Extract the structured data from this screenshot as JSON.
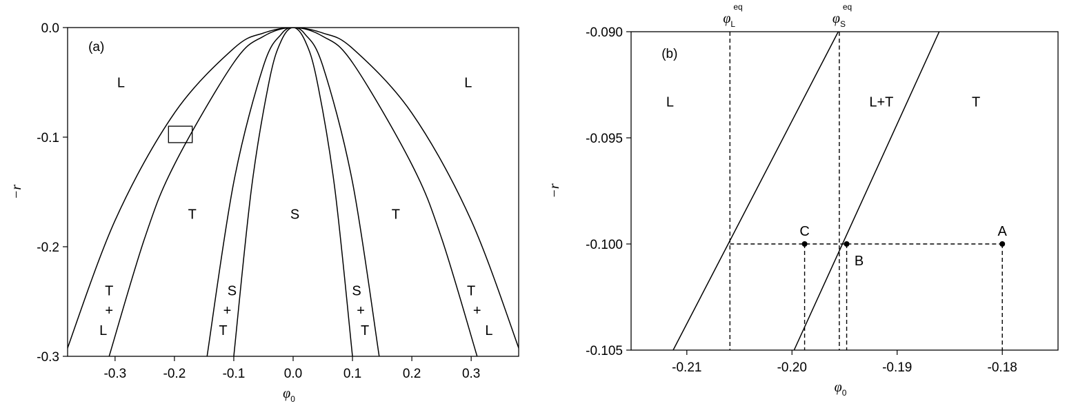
{
  "chart_data": [
    {
      "type": "line",
      "panel_label": "(a)",
      "xlabel": "φ",
      "xlabel_sub": "0",
      "ylabel": "−r",
      "xlim": [
        -0.38,
        0.38
      ],
      "ylim": [
        -0.3,
        0.0
      ],
      "xticks": [
        -0.3,
        -0.2,
        -0.1,
        0.0,
        0.1,
        0.2,
        0.3
      ],
      "xtick_labels": [
        "-0.3",
        "-0.2",
        "-0.1",
        "0.0",
        "0.1",
        "0.2",
        "0.3"
      ],
      "yticks": [
        0.0,
        -0.1,
        -0.2,
        -0.3
      ],
      "ytick_labels": [
        "0.0",
        "-0.1",
        "-0.2",
        "-0.3"
      ],
      "series": [
        {
          "x": [
            -0.385,
            -0.3,
            -0.2,
            -0.1,
            -0.05,
            0.0,
            0.05,
            0.1,
            0.2,
            0.3,
            0.385
          ],
          "y": [
            -0.3,
            -0.176,
            -0.078,
            -0.019,
            -0.005,
            0.0,
            -0.005,
            -0.019,
            -0.078,
            -0.176,
            -0.3
          ]
        },
        {
          "x": [
            -0.31,
            -0.25,
            -0.2,
            -0.1,
            -0.05,
            0.0,
            0.05,
            0.1,
            0.2,
            0.25,
            0.31
          ],
          "y": [
            -0.3,
            -0.192,
            -0.125,
            -0.032,
            -0.008,
            0.0,
            -0.008,
            -0.032,
            -0.125,
            -0.192,
            -0.3
          ]
        },
        {
          "x": [
            -0.145,
            -0.1,
            -0.05,
            -0.02,
            0.0,
            0.02,
            0.05,
            0.1,
            0.145
          ],
          "y": [
            -0.3,
            -0.141,
            -0.035,
            -0.006,
            0.0,
            -0.006,
            -0.035,
            -0.141,
            -0.3
          ]
        },
        {
          "x": [
            -0.1,
            -0.07,
            -0.04,
            -0.02,
            0.0,
            0.02,
            0.04,
            0.07,
            0.1
          ],
          "y": [
            -0.3,
            -0.146,
            -0.048,
            -0.012,
            0.0,
            -0.012,
            -0.048,
            -0.146,
            -0.3
          ]
        }
      ],
      "inset_box": {
        "x": [
          -0.21,
          -0.17
        ],
        "y": [
          -0.105,
          -0.09
        ]
      },
      "annotations": [
        {
          "text": "(a)",
          "x": -0.345,
          "y": -0.017
        },
        {
          "text": "L",
          "x": -0.29,
          "y": -0.05
        },
        {
          "text": "L",
          "x": 0.295,
          "y": -0.05
        },
        {
          "text": "T",
          "x": -0.17,
          "y": -0.17
        },
        {
          "text": "S",
          "x": 0.003,
          "y": -0.17
        },
        {
          "text": "T",
          "x": 0.173,
          "y": -0.17
        },
        {
          "text": "T",
          "x": -0.31,
          "y": -0.24
        },
        {
          "text": "+",
          "x": -0.31,
          "y": -0.258
        },
        {
          "text": "L",
          "x": -0.32,
          "y": -0.276
        },
        {
          "text": "S",
          "x": -0.103,
          "y": -0.24
        },
        {
          "text": "+",
          "x": -0.111,
          "y": -0.258
        },
        {
          "text": "T",
          "x": -0.118,
          "y": -0.276
        },
        {
          "text": "S",
          "x": 0.107,
          "y": -0.24
        },
        {
          "text": "+",
          "x": 0.114,
          "y": -0.258
        },
        {
          "text": "T",
          "x": 0.121,
          "y": -0.276
        },
        {
          "text": "T",
          "x": 0.3,
          "y": -0.24
        },
        {
          "text": "+",
          "x": 0.31,
          "y": -0.258
        },
        {
          "text": "L",
          "x": 0.33,
          "y": -0.276
        }
      ]
    },
    {
      "type": "line",
      "panel_label": "(b)",
      "xlabel": "φ",
      "xlabel_sub": "0",
      "ylabel": "−r",
      "xlim": [
        -0.2153,
        -0.1747
      ],
      "ylim": [
        -0.105,
        -0.09
      ],
      "xticks": [
        -0.21,
        -0.2,
        -0.19,
        -0.18
      ],
      "xtick_labels": [
        "-0.21",
        "-0.20",
        "-0.19",
        "-0.18"
      ],
      "yticks": [
        -0.09,
        -0.095,
        -0.1,
        -0.105
      ],
      "ytick_labels": [
        "-0.090",
        "-0.095",
        "-0.100",
        "-0.105"
      ],
      "series": [
        {
          "x": [
            -0.2113,
            -0.1956
          ],
          "y": [
            -0.105,
            -0.09
          ]
        },
        {
          "x": [
            -0.1998,
            -0.186
          ],
          "y": [
            -0.105,
            -0.09
          ]
        }
      ],
      "vertical_dashed": [
        -0.2059,
        -0.1955
      ],
      "horizontal_dashed": {
        "y": -0.1,
        "x": [
          -0.2059,
          -0.18
        ]
      },
      "points": [
        {
          "label": "C",
          "x": -0.1988,
          "y": -0.1
        },
        {
          "label": "B",
          "x": -0.1948,
          "y": -0.1
        },
        {
          "label": "A",
          "x": -0.18,
          "y": -0.1
        }
      ],
      "point_drops": [
        -0.1988,
        -0.1948,
        -0.18
      ],
      "top_labels": [
        {
          "base": "φ",
          "sub": "L",
          "sup": "eq",
          "x": -0.2059
        },
        {
          "base": "φ",
          "sub": "S",
          "sup": "eq",
          "x": -0.1955
        }
      ],
      "annotations": [
        {
          "text": "(b)",
          "x": -0.2124,
          "y": -0.091
        },
        {
          "text": "L",
          "x": -0.2116,
          "y": -0.0933
        },
        {
          "text": "L+T",
          "x": -0.1915,
          "y": -0.0933
        },
        {
          "text": "T",
          "x": -0.1825,
          "y": -0.0933
        }
      ]
    }
  ]
}
